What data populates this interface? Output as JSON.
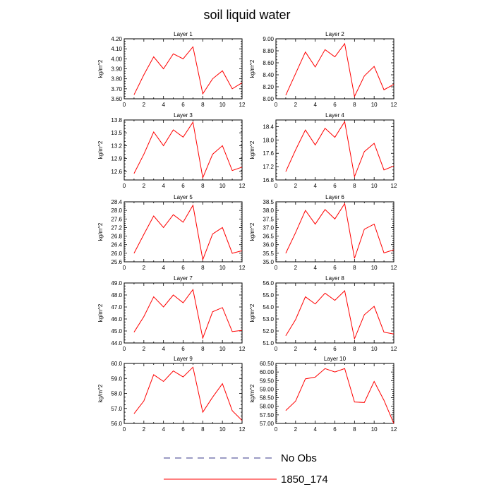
{
  "title": "soil liquid water",
  "legend": [
    {
      "label": "No Obs",
      "color": "#3a3a8a",
      "dashed": true
    },
    {
      "label": "1850_174",
      "color": "#ff0000",
      "dashed": false
    }
  ],
  "chart_data": [
    {
      "type": "line",
      "title": "Layer 1",
      "ylabel": "kg/m^2",
      "xlim": [
        0,
        12
      ],
      "ylim": [
        3.6,
        4.2
      ],
      "yticks": [
        "3.60",
        "3.70",
        "3.80",
        "3.90",
        "4.00",
        "4.10",
        "4.20"
      ],
      "xticks": [
        "0",
        "2",
        "4",
        "6",
        "8",
        "10",
        "12"
      ],
      "series": [
        {
          "color": "#ff0000",
          "x": [
            1,
            2,
            3,
            4,
            5,
            6,
            7,
            8,
            9,
            10,
            11,
            12
          ],
          "y": [
            3.64,
            3.84,
            4.02,
            3.9,
            4.05,
            4.0,
            4.12,
            3.65,
            3.8,
            3.88,
            3.7,
            3.76
          ]
        }
      ]
    },
    {
      "type": "line",
      "title": "Layer 2",
      "ylabel": "kg/m^2",
      "xlim": [
        0,
        12
      ],
      "ylim": [
        8.0,
        9.0
      ],
      "yticks": [
        "8.00",
        "8.20",
        "8.40",
        "8.60",
        "8.80",
        "9.00"
      ],
      "xticks": [
        "0",
        "2",
        "4",
        "6",
        "8",
        "10",
        "12"
      ],
      "series": [
        {
          "color": "#ff0000",
          "x": [
            1,
            2,
            3,
            4,
            5,
            6,
            7,
            8,
            9,
            10,
            11,
            12
          ],
          "y": [
            8.06,
            8.42,
            8.78,
            8.53,
            8.82,
            8.7,
            8.92,
            8.04,
            8.38,
            8.54,
            8.15,
            8.24
          ]
        }
      ]
    },
    {
      "type": "line",
      "title": "Layer 3",
      "ylabel": "kg/m^2",
      "xlim": [
        0,
        12
      ],
      "ylim": [
        12.4,
        13.8
      ],
      "yticks": [
        "12.6",
        "12.9",
        "13.2",
        "13.5",
        "13.8"
      ],
      "xticks": [
        "0",
        "2",
        "4",
        "6",
        "8",
        "10",
        "12"
      ],
      "series": [
        {
          "color": "#ff0000",
          "x": [
            1,
            2,
            3,
            4,
            5,
            6,
            7,
            8,
            9,
            10,
            11,
            12
          ],
          "y": [
            12.55,
            13.0,
            13.52,
            13.2,
            13.57,
            13.4,
            13.75,
            12.45,
            13.0,
            13.2,
            12.62,
            12.7
          ]
        }
      ]
    },
    {
      "type": "line",
      "title": "Layer 4",
      "ylabel": "kg/m^2",
      "xlim": [
        0,
        12
      ],
      "ylim": [
        16.8,
        18.6
      ],
      "yticks": [
        "16.8",
        "17.2",
        "17.6",
        "18.0",
        "18.4"
      ],
      "xticks": [
        "0",
        "2",
        "4",
        "6",
        "8",
        "10",
        "12"
      ],
      "series": [
        {
          "color": "#ff0000",
          "x": [
            1,
            2,
            3,
            4,
            5,
            6,
            7,
            8,
            9,
            10,
            11,
            12
          ],
          "y": [
            17.05,
            17.7,
            18.3,
            17.85,
            18.35,
            18.08,
            18.55,
            16.9,
            17.65,
            17.9,
            17.1,
            17.22
          ]
        }
      ]
    },
    {
      "type": "line",
      "title": "Layer 5",
      "ylabel": "kg/m^2",
      "xlim": [
        0,
        12
      ],
      "ylim": [
        25.6,
        28.4
      ],
      "yticks": [
        "25.6",
        "26.0",
        "26.4",
        "26.8",
        "27.2",
        "27.6",
        "28.0",
        "28.4"
      ],
      "xticks": [
        "0",
        "2",
        "4",
        "6",
        "8",
        "10",
        "12"
      ],
      "series": [
        {
          "color": "#ff0000",
          "x": [
            1,
            2,
            3,
            4,
            5,
            6,
            7,
            8,
            9,
            10,
            11,
            12
          ],
          "y": [
            26.0,
            26.88,
            27.74,
            27.2,
            27.8,
            27.45,
            28.24,
            25.7,
            26.9,
            27.2,
            26.0,
            26.12
          ]
        }
      ]
    },
    {
      "type": "line",
      "title": "Layer 6",
      "ylabel": "kg/m^2",
      "xlim": [
        0,
        12
      ],
      "ylim": [
        35.0,
        38.5
      ],
      "yticks": [
        "35.0",
        "35.5",
        "36.0",
        "36.5",
        "37.0",
        "37.5",
        "38.0",
        "38.5"
      ],
      "xticks": [
        "0",
        "2",
        "4",
        "6",
        "8",
        "10",
        "12"
      ],
      "series": [
        {
          "color": "#ff0000",
          "x": [
            1,
            2,
            3,
            4,
            5,
            6,
            7,
            8,
            9,
            10,
            11,
            12
          ],
          "y": [
            35.5,
            36.7,
            38.0,
            37.2,
            38.05,
            37.5,
            38.4,
            35.2,
            36.9,
            37.2,
            35.52,
            35.7
          ]
        }
      ]
    },
    {
      "type": "line",
      "title": "Layer 7",
      "ylabel": "kg/m^2",
      "xlim": [
        0,
        12
      ],
      "ylim": [
        44.0,
        49.0
      ],
      "yticks": [
        "44.0",
        "45.0",
        "46.0",
        "47.0",
        "48.0",
        "49.0"
      ],
      "xticks": [
        "0",
        "2",
        "4",
        "6",
        "8",
        "10",
        "12"
      ],
      "series": [
        {
          "color": "#ff0000",
          "x": [
            1,
            2,
            3,
            4,
            5,
            6,
            7,
            8,
            9,
            10,
            11,
            12
          ],
          "y": [
            44.9,
            46.2,
            47.85,
            47.0,
            48.0,
            47.35,
            48.45,
            44.4,
            46.6,
            46.95,
            44.95,
            45.05
          ]
        }
      ]
    },
    {
      "type": "line",
      "title": "Layer 8",
      "ylabel": "kg/m^2",
      "xlim": [
        0,
        12
      ],
      "ylim": [
        51.0,
        56.0
      ],
      "yticks": [
        "51.0",
        "52.0",
        "53.0",
        "54.0",
        "55.0",
        "56.0"
      ],
      "xticks": [
        "0",
        "2",
        "4",
        "6",
        "8",
        "10",
        "12"
      ],
      "series": [
        {
          "color": "#ff0000",
          "x": [
            1,
            2,
            3,
            4,
            5,
            6,
            7,
            8,
            9,
            10,
            11,
            12
          ],
          "y": [
            51.6,
            52.95,
            54.85,
            54.25,
            55.15,
            54.55,
            55.35,
            51.35,
            53.35,
            54.05,
            51.9,
            51.75
          ]
        }
      ]
    },
    {
      "type": "line",
      "title": "Layer 9",
      "ylabel": "kg/m^2",
      "xlim": [
        0,
        12
      ],
      "ylim": [
        56.0,
        60.0
      ],
      "yticks": [
        "56.0",
        "57.0",
        "58.0",
        "59.0",
        "60.0"
      ],
      "xticks": [
        "0",
        "2",
        "4",
        "6",
        "8",
        "10",
        "12"
      ],
      "series": [
        {
          "color": "#ff0000",
          "x": [
            1,
            2,
            3,
            4,
            5,
            6,
            7,
            8,
            9,
            10,
            11,
            12
          ],
          "y": [
            56.65,
            57.5,
            59.25,
            58.8,
            59.5,
            59.1,
            59.75,
            56.75,
            57.75,
            58.65,
            56.85,
            56.2
          ]
        }
      ]
    },
    {
      "type": "line",
      "title": "Layer 10",
      "ylabel": "kg/m^2",
      "xlim": [
        0,
        12
      ],
      "ylim": [
        57.0,
        60.5
      ],
      "yticks": [
        "57.00",
        "57.50",
        "58.00",
        "58.50",
        "59.00",
        "59.50",
        "60.00",
        "60.50"
      ],
      "xticks": [
        "0",
        "2",
        "4",
        "6",
        "8",
        "10",
        "12"
      ],
      "series": [
        {
          "color": "#ff0000",
          "x": [
            1,
            2,
            3,
            4,
            5,
            6,
            7,
            8,
            9,
            10,
            11,
            12
          ],
          "y": [
            57.75,
            58.3,
            59.6,
            59.7,
            60.2,
            60.0,
            60.2,
            58.25,
            58.22,
            59.45,
            58.35,
            57.0
          ]
        }
      ]
    }
  ]
}
